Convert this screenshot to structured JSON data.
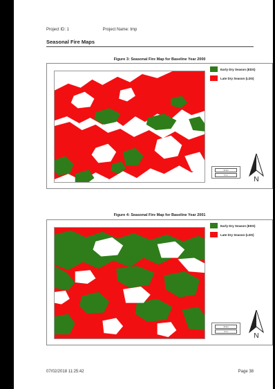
{
  "header": {
    "project_id": "Project ID: 1",
    "project_name": "Project Name: tmp"
  },
  "section_title": "Seasonal Fire Maps",
  "figures": [
    {
      "title": "Figure 3: Seasonal Fire Map for Baseline Year  2000",
      "scale_labels": [
        "10 km",
        "0 mi"
      ],
      "north_label": "N"
    },
    {
      "title": "Figure 4: Seasonal Fire Map for Baseline Year  2001",
      "scale_labels": [
        "10 km",
        "0 mi"
      ],
      "north_label": "N"
    }
  ],
  "legend": {
    "eds_label": "Early Dry Season (EDS)",
    "lds_label": "Late Dry Season (LDS)",
    "eds_color": "#2e7d1a",
    "lds_color": "#f20f12"
  },
  "footer": {
    "datetime": "07/02/2018 11:25:42",
    "page": "Page 38"
  }
}
